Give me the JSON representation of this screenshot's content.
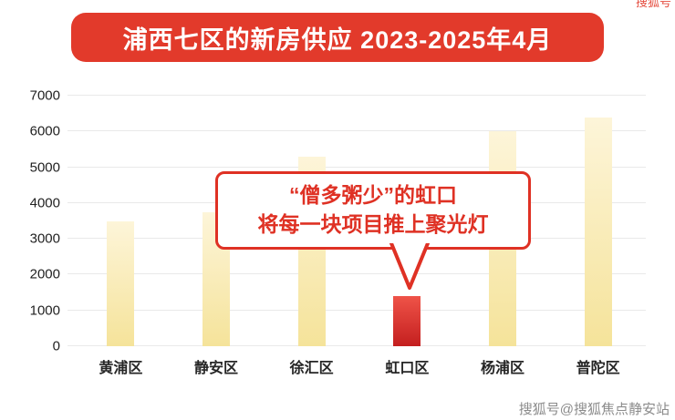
{
  "banner": {
    "title": "浦西七区的新房供应 2023-2025年4月"
  },
  "chart_data": {
    "type": "bar",
    "title": "浦西七区的新房供应 2023-2025年4月",
    "categories": [
      "黄浦区",
      "静安区",
      "徐汇区",
      "虹口区",
      "杨浦区",
      "普陀区"
    ],
    "values": [
      3500,
      3750,
      5300,
      1400,
      6000,
      6400
    ],
    "highlight_index": 3,
    "highlight_category": "虹口区",
    "ylim": [
      0,
      7000
    ],
    "yticks": [
      0,
      1000,
      2000,
      3000,
      4000,
      5000,
      6000,
      7000
    ],
    "grid": true,
    "legend": "none",
    "annotation": {
      "text": "“僧多粥少”的虹口 将每一块项目推上聚光灯",
      "target_category": "虹口区"
    }
  },
  "callout": {
    "line1": "“僧多粥少”的虹口",
    "line2": "将每一块项目推上聚光灯"
  },
  "watermark": {
    "bottom_text": "搜狐号@搜狐焦点静安站",
    "corner_text": "搜狐号"
  },
  "colors": {
    "banner_red": "#e23a2b",
    "callout_red": "#df3124",
    "bar_yellow_top": "#fdf5d9",
    "bar_yellow_bottom": "#f5e39a",
    "bar_red_top": "#ef5348",
    "bar_red_bottom": "#c41f1f",
    "grid_gray": "#e9e9e9",
    "axis_text": "#222222",
    "watermark_gray": "#8b8b8b"
  }
}
